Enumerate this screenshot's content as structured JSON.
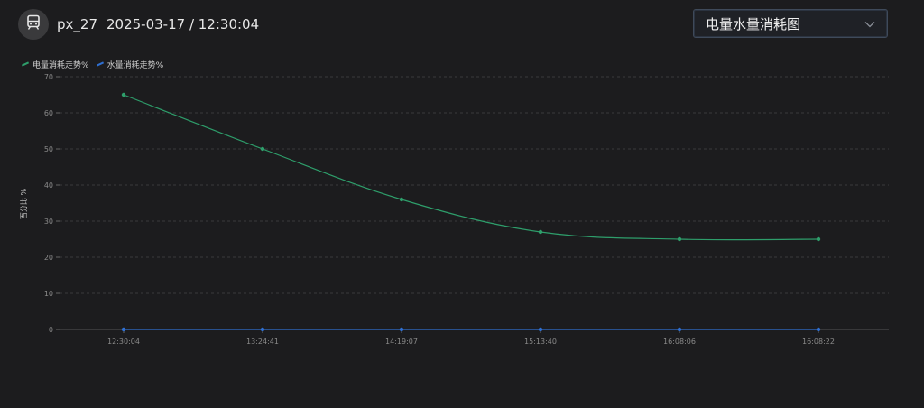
{
  "header": {
    "device_icon": "train-icon",
    "device_id": "px_27",
    "timestamp": "2025-03-17 / 12:30:04"
  },
  "selector": {
    "value": "电量水量消耗图",
    "icon": "chevron-down-icon"
  },
  "colors": {
    "background": "#1c1c1e",
    "electric": "#2e9e6b",
    "water": "#2f6fd1"
  },
  "chart_data": {
    "type": "line",
    "ylabel": "百分比 %",
    "ylim": [
      0,
      70
    ],
    "yticks": [
      "0",
      "10",
      "20",
      "30",
      "40",
      "50",
      "60",
      "70"
    ],
    "categories": [
      "12:30:04",
      "13:24:41",
      "14:19:07",
      "15:13:40",
      "16:08:06",
      "16:08:22"
    ],
    "grid": true,
    "legend_position": "top-left",
    "series": [
      {
        "name": "电量消耗走势%",
        "values": [
          65,
          50,
          36,
          27,
          25,
          25
        ],
        "color": "#2e9e6b"
      },
      {
        "name": "水量消耗走势%",
        "values": [
          0,
          0,
          0,
          0,
          0,
          0
        ],
        "color": "#2f6fd1"
      }
    ]
  }
}
